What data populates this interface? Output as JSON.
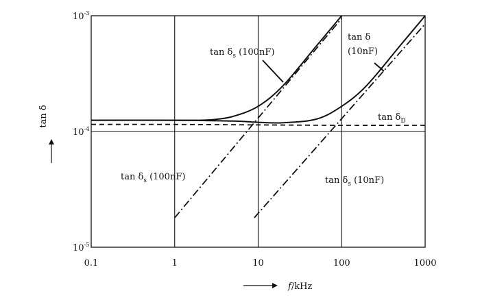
{
  "chart_data": {
    "type": "line",
    "xscale": "log",
    "yscale": "log",
    "xlim": [
      0.1,
      1000
    ],
    "ylim": [
      1e-05,
      0.001
    ],
    "grid": true,
    "xlabel": {
      "var": "f",
      "unit": "/kHz"
    },
    "ylabel": "tan δ",
    "x_ticks": [
      "0.1",
      "1",
      "10",
      "100",
      "1000"
    ],
    "y_ticks": [
      {
        "base": "10",
        "exp": "-3"
      },
      {
        "base": "10",
        "exp": "-4"
      },
      {
        "base": "10",
        "exp": "-5"
      }
    ],
    "series": [
      {
        "style": "solid",
        "points": [
          [
            0.1,
            0.000125
          ],
          [
            1,
            0.000125
          ],
          [
            2,
            0.000125
          ],
          [
            3,
            0.000127
          ],
          [
            5,
            0.000135
          ],
          [
            10,
            0.000165
          ],
          [
            20,
            0.00025
          ],
          [
            50,
            0.00055
          ],
          [
            100,
            0.001
          ]
        ]
      },
      {
        "style": "solid",
        "points": [
          [
            0.1,
            0.000125
          ],
          [
            1,
            0.000125
          ],
          [
            5,
            0.000123
          ],
          [
            10,
            0.00012
          ],
          [
            20,
            0.000119
          ],
          [
            50,
            0.000128
          ],
          [
            100,
            0.000165
          ],
          [
            200,
            0.00025
          ],
          [
            500,
            0.00055
          ],
          [
            1000,
            0.001
          ]
        ]
      },
      {
        "style": "dashed",
        "points": [
          [
            0.1,
            0.000115
          ],
          [
            1,
            0.000115
          ],
          [
            10,
            0.000114
          ],
          [
            100,
            0.000113
          ],
          [
            1000,
            0.000113
          ]
        ]
      },
      {
        "style": "dashdot",
        "points": [
          [
            1,
            1.8e-05
          ],
          [
            100,
            0.00095
          ]
        ]
      },
      {
        "style": "dashdot",
        "points": [
          [
            9,
            1.8e-05
          ],
          [
            1000,
            0.00085
          ]
        ]
      }
    ],
    "annotations": [
      {
        "text": "tan δ",
        "sub": "s",
        "suffix": " (100nF)"
      },
      {
        "text": "tan δ",
        "sub": "",
        "suffix": ""
      },
      {
        "text": "(10nF)",
        "sub": "",
        "suffix": ""
      },
      {
        "text": "tan δ",
        "sub": "D",
        "suffix": ""
      },
      {
        "text": "tan δ",
        "sub": "s",
        "suffix": " (100nF)"
      },
      {
        "text": "tan δ",
        "sub": "s",
        "suffix": " (10nF)"
      }
    ]
  }
}
